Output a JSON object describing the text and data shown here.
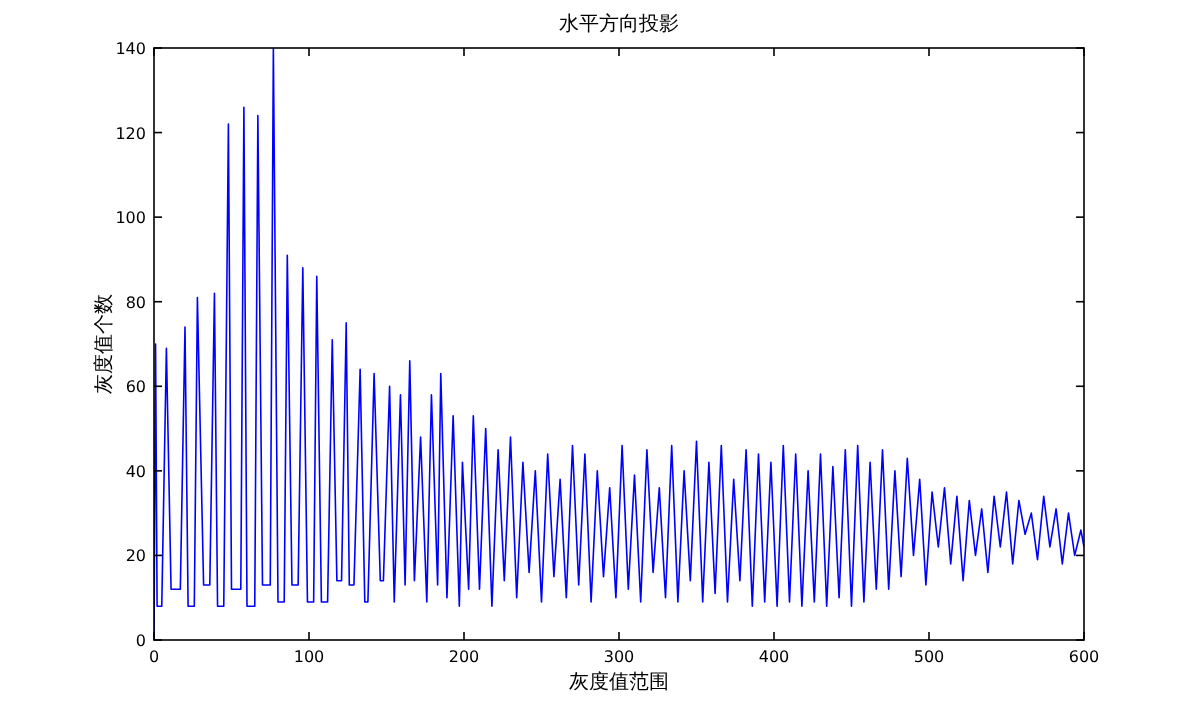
{
  "chart_data": {
    "type": "line",
    "title": "水平方向投影",
    "xlabel": "灰度值范围",
    "ylabel": "灰度值个数",
    "xlim": [
      0,
      600
    ],
    "xticks": [
      0,
      100,
      200,
      300,
      400,
      500,
      600
    ],
    "ylim": [
      0,
      140
    ],
    "yticks": [
      0,
      20,
      40,
      60,
      80,
      100,
      120,
      140
    ],
    "grid": false,
    "marker": "none",
    "line_style": "solid",
    "series": [
      {
        "color": "#0000ff",
        "x": [
          0,
          1,
          2,
          5,
          8,
          11,
          17,
          20,
          22,
          26,
          28,
          32,
          36,
          39,
          41,
          45,
          48,
          50,
          56,
          58,
          60,
          65,
          67,
          70,
          75,
          77,
          80,
          84,
          86,
          89,
          93,
          96,
          99,
          103,
          105,
          108,
          112,
          115,
          118,
          121,
          124,
          126,
          129,
          133,
          136,
          138,
          142,
          146,
          148,
          152,
          155,
          159,
          162,
          165,
          168,
          172,
          176,
          179,
          183,
          185,
          189,
          193,
          197,
          199,
          203,
          206,
          210,
          214,
          218,
          222,
          226,
          230,
          234,
          238,
          242,
          246,
          250,
          254,
          258,
          262,
          266,
          270,
          274,
          278,
          282,
          286,
          290,
          294,
          298,
          302,
          306,
          310,
          314,
          318,
          322,
          326,
          330,
          334,
          338,
          342,
          346,
          350,
          354,
          358,
          362,
          366,
          370,
          374,
          378,
          382,
          386,
          390,
          394,
          398,
          402,
          406,
          410,
          414,
          418,
          422,
          426,
          430,
          434,
          438,
          442,
          446,
          450,
          454,
          458,
          462,
          466,
          470,
          474,
          478,
          482,
          486,
          490,
          494,
          498,
          502,
          506,
          510,
          514,
          518,
          522,
          526,
          530,
          534,
          538,
          542,
          546,
          550,
          554,
          558,
          562,
          566,
          570,
          574,
          578,
          582,
          586,
          590,
          594,
          598,
          600
        ],
        "values": [
          0,
          70,
          8,
          8,
          69,
          12,
          12,
          74,
          8,
          8,
          81,
          13,
          13,
          82,
          8,
          8,
          122,
          12,
          12,
          126,
          8,
          8,
          124,
          13,
          13,
          140,
          9,
          9,
          91,
          13,
          13,
          88,
          9,
          9,
          86,
          9,
          9,
          71,
          14,
          14,
          75,
          13,
          13,
          64,
          9,
          9,
          63,
          14,
          14,
          60,
          9,
          58,
          13,
          66,
          14,
          48,
          9,
          58,
          13,
          63,
          10,
          53,
          8,
          42,
          12,
          53,
          12,
          50,
          8,
          45,
          14,
          48,
          10,
          42,
          16,
          40,
          9,
          44,
          15,
          38,
          10,
          46,
          13,
          44,
          9,
          40,
          15,
          36,
          10,
          46,
          12,
          39,
          9,
          45,
          16,
          36,
          10,
          46,
          9,
          40,
          14,
          47,
          9,
          42,
          11,
          46,
          9,
          38,
          14,
          45,
          8,
          44,
          9,
          42,
          8,
          46,
          9,
          44,
          8,
          40,
          9,
          44,
          8,
          41,
          10,
          45,
          8,
          46,
          9,
          42,
          12,
          45,
          12,
          40,
          15,
          43,
          20,
          38,
          13,
          35,
          22,
          36,
          18,
          34,
          14,
          33,
          20,
          31,
          16,
          34,
          22,
          35,
          18,
          33,
          25,
          30,
          19,
          34,
          22,
          31,
          18,
          30,
          20,
          26,
          22
        ]
      }
    ]
  }
}
